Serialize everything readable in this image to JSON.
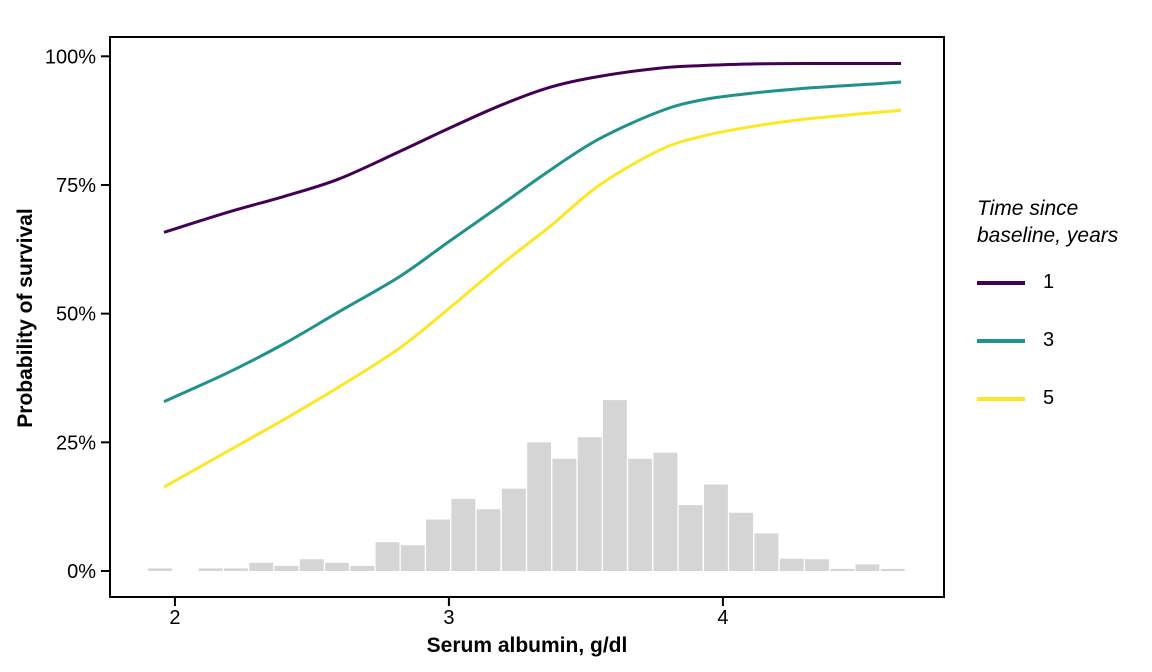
{
  "figure": {
    "background": "#ffffff"
  },
  "axes": {
    "x_title": "Serum albumin, g/dl",
    "y_title": "Probability of survival"
  },
  "legend": {
    "title": "Time since baseline, years",
    "position": "right",
    "items": [
      {
        "label": "1",
        "color": "#440154"
      },
      {
        "label": "3",
        "color": "#21918c"
      },
      {
        "label": "5",
        "color": "#fde725"
      }
    ]
  },
  "chart_data": {
    "type": "line",
    "title": "",
    "xlabel": "Serum albumin, g/dl",
    "ylabel": "Probability of survival",
    "grid": false,
    "legend_position": "right",
    "xlim": [
      1.763,
      4.807
    ],
    "ylim": [
      -5.05,
      103.75
    ],
    "x_ticks": [
      2,
      3,
      4
    ],
    "x_tick_labels": [
      "2",
      "3",
      "4"
    ],
    "y_ticks": [
      0,
      25,
      50,
      75,
      100
    ],
    "y_tick_labels": [
      "0%",
      "25%",
      "50%",
      "75%",
      "100%"
    ],
    "series": [
      {
        "name": "1",
        "color": "#440154",
        "x": [
          1.96,
          2.2,
          2.4,
          2.6,
          2.82,
          3.0,
          3.19,
          3.37,
          3.55,
          3.77,
          3.92,
          4.1,
          4.3,
          4.65
        ],
        "y": [
          65.8,
          69.8,
          72.8,
          76.2,
          81.5,
          86.0,
          90.5,
          94.0,
          96.1,
          97.7,
          98.2,
          98.5,
          98.6,
          98.6
        ]
      },
      {
        "name": "3",
        "color": "#21918c",
        "x": [
          1.96,
          2.2,
          2.4,
          2.6,
          2.82,
          3.0,
          3.19,
          3.37,
          3.55,
          3.77,
          3.92,
          4.1,
          4.3,
          4.54,
          4.65
        ],
        "y": [
          32.9,
          38.7,
          44.2,
          50.4,
          57.2,
          64.0,
          71.1,
          77.9,
          84.0,
          89.3,
          91.5,
          92.8,
          93.8,
          94.6,
          95.0
        ]
      },
      {
        "name": "5",
        "color": "#fde725",
        "x": [
          1.96,
          2.2,
          2.4,
          2.6,
          2.82,
          3.0,
          3.19,
          3.37,
          3.55,
          3.77,
          3.92,
          4.1,
          4.3,
          4.54,
          4.65
        ],
        "y": [
          16.3,
          23.5,
          29.5,
          35.8,
          43.3,
          51.0,
          59.5,
          67.0,
          75.0,
          81.8,
          84.4,
          86.3,
          87.8,
          89.0,
          89.5
        ]
      }
    ],
    "histogram": {
      "description": "Distribution of serum albumin shown as gray bars along the x-axis, heights in % scale",
      "color": "#d5d5d5",
      "bin_start": 1.9,
      "bin_width": 0.0922,
      "heights_pct": [
        0.5,
        0,
        0.5,
        0.5,
        1.6,
        1.0,
        2.3,
        1.6,
        1.0,
        5.6,
        5.0,
        10.0,
        14.0,
        12.0,
        16.0,
        25.0,
        21.8,
        26.0,
        33.2,
        21.8,
        23.0,
        12.8,
        16.8,
        11.3,
        7.3,
        2.4,
        2.3,
        0.4,
        1.3,
        0.4
      ]
    },
    "panel_border_color": "#000000",
    "tick_color": "#000000",
    "text_color": "#000000"
  }
}
